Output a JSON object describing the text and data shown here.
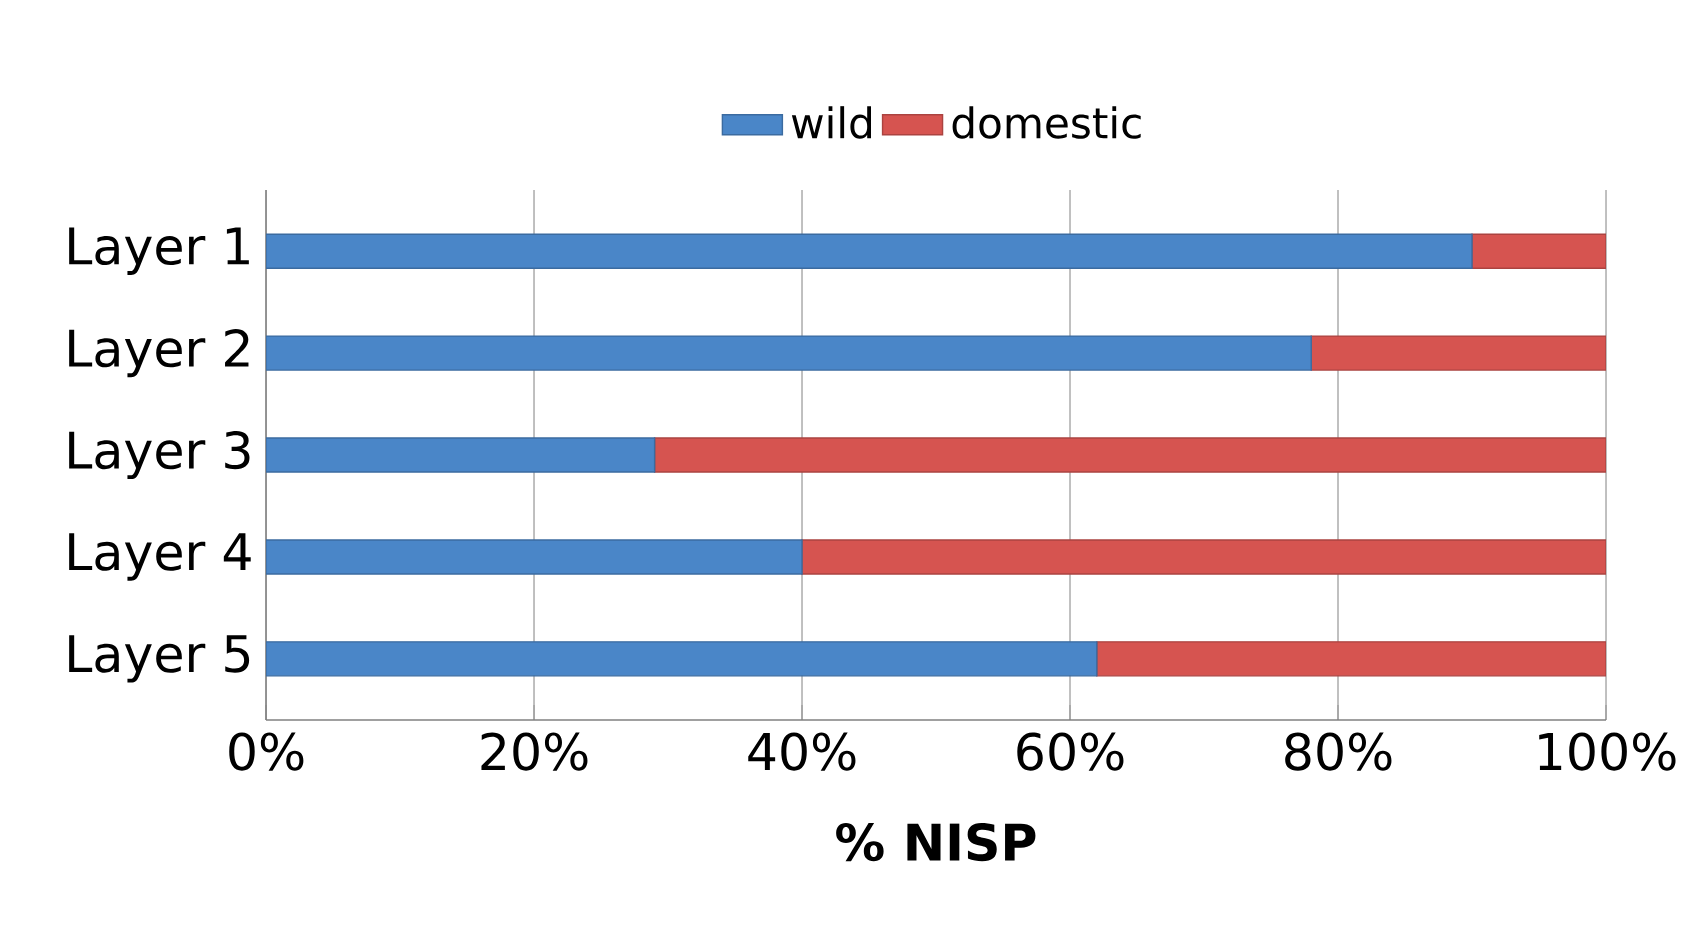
{
  "chart_data": {
    "type": "bar",
    "orientation": "horizontal",
    "stacked": true,
    "categories": [
      "Layer 1",
      "Layer 2",
      "Layer 3",
      "Layer 4",
      "Layer 5"
    ],
    "series": [
      {
        "name": "wild",
        "color": "#4a86c8",
        "values": [
          90,
          78,
          29,
          40,
          62
        ]
      },
      {
        "name": "domestic",
        "color": "#d65450",
        "values": [
          10,
          22,
          71,
          60,
          38
        ]
      }
    ],
    "xlim": [
      0,
      100
    ],
    "xticks": [
      {
        "value": 0,
        "label": "0%"
      },
      {
        "value": 20,
        "label": "20%"
      },
      {
        "value": 40,
        "label": "40%"
      },
      {
        "value": 60,
        "label": "60%"
      },
      {
        "value": 80,
        "label": "80%"
      },
      {
        "value": 100,
        "label": "100%"
      }
    ],
    "xlabel": "% NISP",
    "grid": "x",
    "legend": "top"
  }
}
